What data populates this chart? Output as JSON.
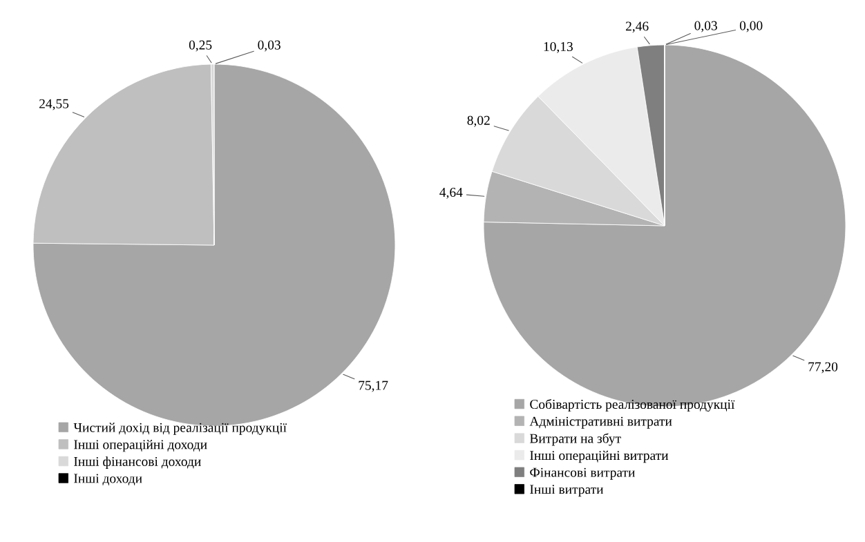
{
  "chart_data": [
    {
      "type": "pie",
      "categories": [
        "Чистий дохід від реалізації продукції",
        "Інші операційні доходи",
        "Інші фінансові доходи",
        "Інші доходи"
      ],
      "values": [
        75.17,
        24.55,
        0.25,
        0.03
      ],
      "value_labels": [
        "75,17",
        "24,55",
        "0,25",
        "0,03"
      ],
      "colors": [
        "#a6a6a6",
        "#bfbfbf",
        "#d9d9d9",
        "#000000"
      ],
      "legend": "bottom"
    },
    {
      "type": "pie",
      "categories": [
        "Собівартість реалізованої продукції",
        "Адміністративні витрати",
        "Витрати на збут",
        "Інші операційні витрати",
        "Фінансові витрати",
        null,
        "Інші витрати"
      ],
      "values": [
        77.2,
        4.64,
        8.02,
        10.13,
        2.46,
        0.03,
        0.0
      ],
      "value_labels": [
        "77,20",
        "4,64",
        "8,02",
        "10,13",
        "2,46",
        "0,03",
        "0,00"
      ],
      "colors": [
        "#a6a6a6",
        "#b3b3b3",
        "#d9d9d9",
        "#ebebeb",
        "#7f7f7f",
        "#3f3f3f",
        "#000000"
      ],
      "legend": "bottom"
    }
  ]
}
